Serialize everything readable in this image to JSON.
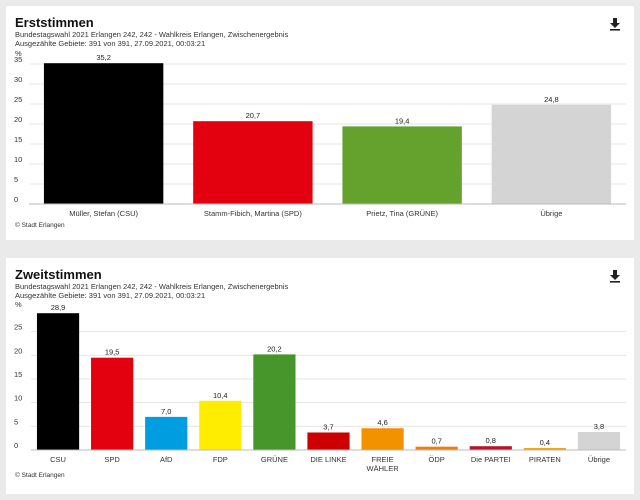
{
  "panels": [
    {
      "title": "Erststimmen",
      "subtitle": "Bundestagswahl 2021 Erlangen 242, 242 - Wahlkreis Erlangen, Zwischenergebnis",
      "counted": "Ausgezählte Gebiete: 391 von 391, 27.09.2021, 00:03:21",
      "credit": "© Stadt Erlangen",
      "download_icon": "download-icon"
    },
    {
      "title": "Zweitstimmen",
      "subtitle": "Bundestagswahl 2021 Erlangen 242, 242 - Wahlkreis Erlangen, Zwischenergebnis",
      "counted": "Ausgezählte Gebiete: 391 von 391, 27.09.2021, 00:03:21",
      "credit": "© Stadt Erlangen",
      "download_icon": "download-icon"
    }
  ],
  "chart_data": [
    {
      "type": "bar",
      "title": "Erststimmen",
      "ylabel": "%",
      "ylim": [
        0,
        35
      ],
      "yticks": [
        0,
        5,
        10,
        15,
        20,
        25,
        30,
        35
      ],
      "grid": true,
      "categories": [
        "Müller, Stefan (CSU)",
        "Stamm-Fibich, Martina (SPD)",
        "Prietz, Tina (GRÜNE)",
        "Übrige"
      ],
      "values": [
        35.2,
        20.7,
        19.4,
        24.8
      ],
      "value_labels": [
        "35,2",
        "20,7",
        "19,4",
        "24,8"
      ],
      "colors": [
        "#000000",
        "#e3000f",
        "#64a12d",
        "#d4d4d4"
      ]
    },
    {
      "type": "bar",
      "title": "Zweitstimmen",
      "ylabel": "%",
      "ylim": [
        0,
        30
      ],
      "yticks": [
        0,
        5,
        10,
        15,
        20,
        25
      ],
      "grid": true,
      "categories": [
        "CSU",
        "SPD",
        "AfD",
        "FDP",
        "GRÜNE",
        "DIE LINKE",
        "FREIE WÄHLER",
        "ÖDP",
        "Die PARTEI",
        "PIRATEN",
        "Übrige"
      ],
      "category_lines": [
        [
          "CSU"
        ],
        [
          "SPD"
        ],
        [
          "AfD"
        ],
        [
          "FDP"
        ],
        [
          "GRÜNE"
        ],
        [
          "DIE LINKE"
        ],
        [
          "FREIE",
          "WÄHLER"
        ],
        [
          "ÖDP"
        ],
        [
          "Die PARTEI"
        ],
        [
          "PIRATEN"
        ],
        [
          "Übrige"
        ]
      ],
      "values": [
        28.9,
        19.5,
        7.0,
        10.4,
        20.2,
        3.7,
        4.6,
        0.7,
        0.8,
        0.4,
        3.8
      ],
      "value_labels": [
        "28,9",
        "19,5",
        "7,0",
        "10,4",
        "20,2",
        "3,7",
        "4,6",
        "0,7",
        "0,8",
        "0,4",
        "3,8"
      ],
      "colors": [
        "#000000",
        "#e3000f",
        "#009ee0",
        "#ffed00",
        "#46962b",
        "#cc0000",
        "#f39200",
        "#f07d0a",
        "#b5152b",
        "#f49a00",
        "#d4d4d4"
      ]
    }
  ]
}
